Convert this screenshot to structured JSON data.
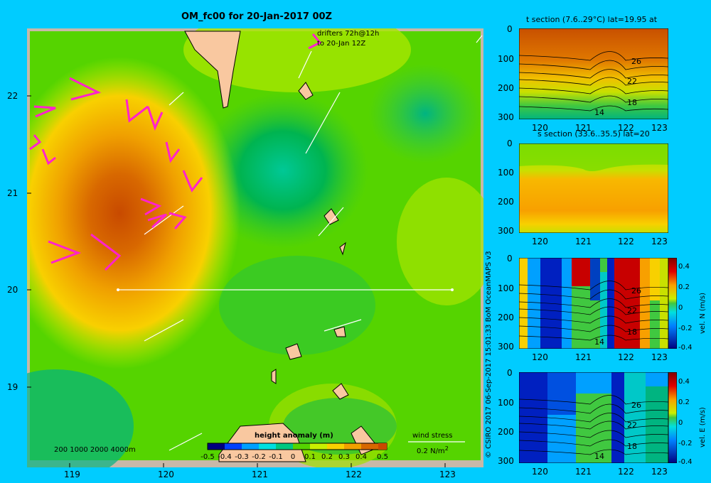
{
  "title": "OM_fc00 for 20-Jan-2017 00Z",
  "credit": "© CSIRO 2017   06-Sep-2017 15:01:33 BoM OceanMAPS v3",
  "map": {
    "x_ticks": [
      "119",
      "120",
      "121",
      "122",
      "123"
    ],
    "y_ticks": [
      "22",
      "21",
      "20",
      "19"
    ],
    "drifters_line1": "drifters 72h@12h",
    "drifters_line2": "to 20-Jan 12Z",
    "bathy_label": "200  1000  2000  4000m",
    "colorbar_title": "height anomaly (m)",
    "colorbar_ticks": [
      "-0.5",
      "-0.4",
      "-0.3",
      "-0.2",
      "-0.1",
      "0",
      "0.1",
      "0.2",
      "0.3",
      "0.4",
      "0.5"
    ],
    "wind_stress_label": "wind stress",
    "wind_stress_value": "0.2 N/m",
    "wind_stress_sup": "2",
    "colors": {
      "sea": "#55d400",
      "land": "#f9c8a0",
      "frame": "#c8b8a8",
      "vectors": "#ffffff",
      "wind": "#ff22cc"
    }
  },
  "chart_data": [
    {
      "type": "heatmap",
      "title": "OM_fc00 for 20-Jan-2017 00Z",
      "variable": "height anomaly (m)",
      "xlim": [
        118.5,
        123.5
      ],
      "ylim": [
        18.3,
        22.7
      ],
      "clim": [
        -0.5,
        0.5
      ],
      "features": [
        {
          "name": "warm eddy",
          "x": 119.5,
          "y": 20.95,
          "peak": 0.45
        },
        {
          "name": "cold eddy",
          "x": 121.3,
          "y": 21.3,
          "peak": -0.05
        }
      ],
      "section_line": {
        "lat": 20,
        "x": [
          119.5,
          123.0
        ]
      }
    },
    {
      "type": "heatmap",
      "title": "t section (7.6..29°C) lat=19.95 at",
      "xticks": [
        "120",
        "121",
        "122",
        "123"
      ],
      "yticks": [
        "0",
        "100",
        "200",
        "300"
      ],
      "contour_labels": [
        "26",
        "22",
        "18",
        "14"
      ],
      "clim": [
        7.6,
        29
      ]
    },
    {
      "type": "heatmap",
      "title": "s section (33.6..35.5) lat=20",
      "xticks": [
        "120",
        "121",
        "122",
        "123"
      ],
      "yticks": [
        "0",
        "100",
        "200",
        "300"
      ],
      "clim": [
        33.6,
        35.5
      ]
    },
    {
      "type": "heatmap",
      "title": "",
      "xticks": [
        "120",
        "121",
        "122",
        "123"
      ],
      "yticks": [
        "0",
        "100",
        "200",
        "300"
      ],
      "contour_labels": [
        "26",
        "22",
        "18",
        "14"
      ],
      "colorbar_label": "vel. N (m/s)",
      "colorbar_ticks": [
        "0.4",
        "0.2",
        "0",
        "-0.2",
        "-0.4"
      ],
      "clim": [
        -0.4,
        0.4
      ]
    },
    {
      "type": "heatmap",
      "title": "",
      "xticks": [
        "120",
        "121",
        "122",
        "123"
      ],
      "yticks": [
        "0",
        "100",
        "200",
        "300"
      ],
      "contour_labels": [
        "26",
        "22",
        "18",
        "14"
      ],
      "colorbar_label": "vel. E (m/s)",
      "colorbar_ticks": [
        "0.4",
        "0.2",
        "0",
        "-0.2",
        "-0.4"
      ],
      "clim": [
        -0.4,
        0.4
      ]
    }
  ],
  "panels": [
    {
      "title": "t section (7.6..29°C) lat=19.95 at",
      "xticks": [
        "120",
        "121",
        "122",
        "123"
      ],
      "yticks": [
        "0",
        "100",
        "200",
        "300"
      ],
      "labels": [
        "26",
        "22",
        "18",
        "14"
      ]
    },
    {
      "title": "s section (33.6..35.5) lat=20",
      "xticks": [
        "120",
        "121",
        "122",
        "123"
      ],
      "yticks": [
        "0",
        "100",
        "200",
        "300"
      ],
      "labels": []
    },
    {
      "title": "",
      "xticks": [
        "120",
        "121",
        "122",
        "123"
      ],
      "yticks": [
        "0",
        "100",
        "200",
        "300"
      ],
      "labels": [
        "26",
        "22",
        "18",
        "14"
      ],
      "cb_label": "vel. N (m/s)",
      "cb_ticks": [
        "0.4",
        "0.2",
        "0",
        "-0.2",
        "-0.4"
      ]
    },
    {
      "title": "",
      "xticks": [
        "120",
        "121",
        "122",
        "123"
      ],
      "yticks": [
        "0",
        "100",
        "200",
        "300"
      ],
      "labels": [
        "26",
        "22",
        "18",
        "14"
      ],
      "cb_label": "vel. E (m/s)",
      "cb_ticks": [
        "0.4",
        "0.2",
        "0",
        "-0.2",
        "-0.4"
      ]
    }
  ]
}
